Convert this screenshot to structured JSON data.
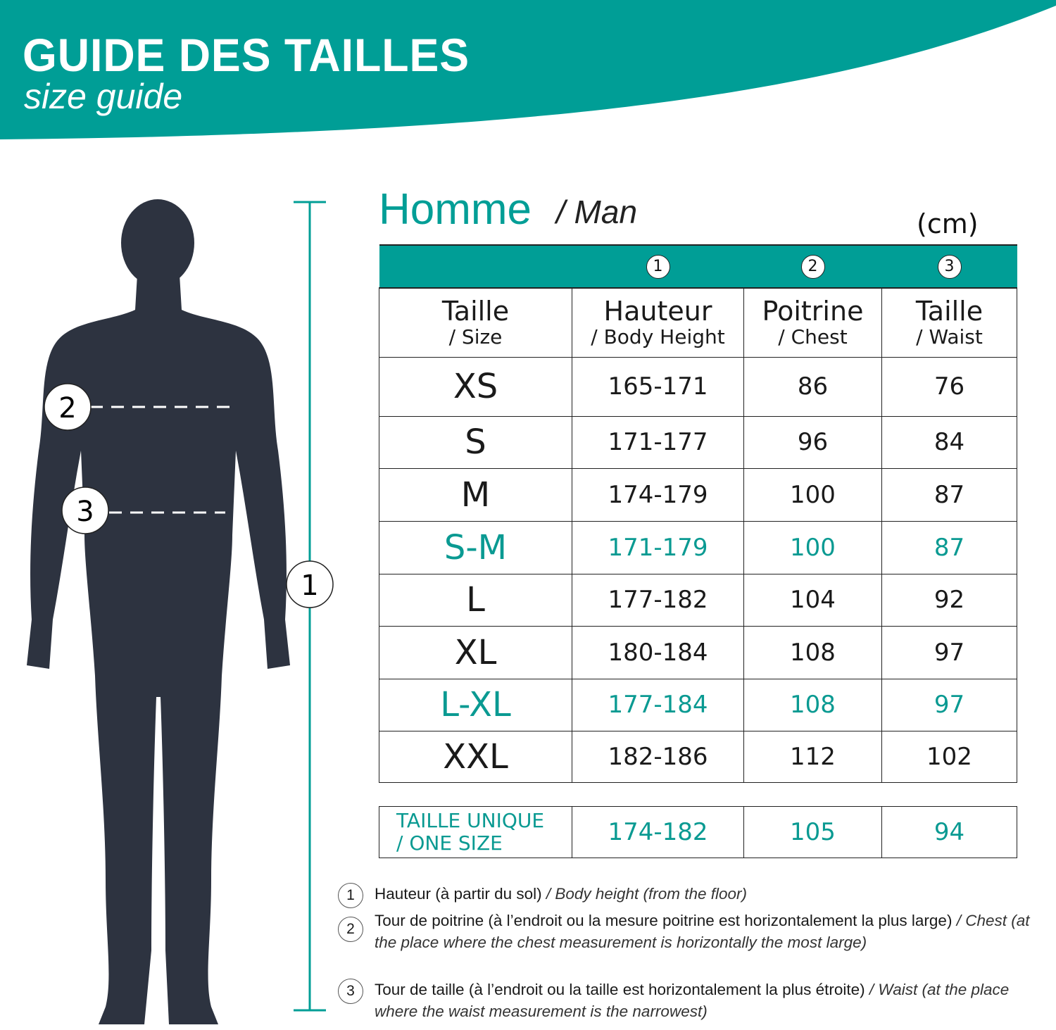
{
  "header": {
    "title": "GUIDE DES  TAILLES",
    "subtitle": "size guide"
  },
  "colors": {
    "teal": "#009e96",
    "silhouette": "#2d3340"
  },
  "section": {
    "title": "Homme",
    "subtitle": "/ Man",
    "unit": "(cm)"
  },
  "figure": {
    "markers": [
      "1",
      "2",
      "3"
    ]
  },
  "table": {
    "markers": [
      "1",
      "2",
      "3"
    ],
    "columns": [
      {
        "fr": "Taille",
        "en": "/ Size"
      },
      {
        "fr": "Hauteur",
        "en": "/ Body Height"
      },
      {
        "fr": "Poitrine",
        "en": "/ Chest"
      },
      {
        "fr": "Taille",
        "en": "/ Waist"
      }
    ],
    "rows": [
      {
        "size": "XS",
        "height": "165-171",
        "chest": "86",
        "waist": "76",
        "highlight": false
      },
      {
        "size": "S",
        "height": "171-177",
        "chest": "96",
        "waist": "84",
        "highlight": false
      },
      {
        "size": "M",
        "height": "174-179",
        "chest": "100",
        "waist": "87",
        "highlight": false
      },
      {
        "size": "S-M",
        "height": "171-179",
        "chest": "100",
        "waist": "87",
        "highlight": true
      },
      {
        "size": "L",
        "height": "177-182",
        "chest": "104",
        "waist": "92",
        "highlight": false
      },
      {
        "size": "XL",
        "height": "180-184",
        "chest": "108",
        "waist": "97",
        "highlight": false
      },
      {
        "size": "L-XL",
        "height": "177-184",
        "chest": "108",
        "waist": "97",
        "highlight": true
      },
      {
        "size": "XXL",
        "height": "182-186",
        "chest": "112",
        "waist": "102",
        "highlight": false
      }
    ],
    "one_size": {
      "label_fr": "TAILLE UNIQUE",
      "label_en": "/ ONE SIZE",
      "height": "174-182",
      "chest": "105",
      "waist": "94"
    }
  },
  "notes": [
    {
      "num": "1",
      "fr": "Hauteur (à partir du sol)",
      "en": "/ Body height (from the floor)"
    },
    {
      "num": "2",
      "fr": "Tour de poitrine (à l’endroit ou la mesure poitrine est horizontalement la plus large)",
      "en": "/ Chest (at the place where the chest measurement is horizontally the most large)"
    },
    {
      "num": "3",
      "fr": "Tour de taille (à l’endroit ou la taille est horizontalement la plus étroite)",
      "en": "/ Waist (at the place where the waist measurement is the narrowest)"
    }
  ]
}
